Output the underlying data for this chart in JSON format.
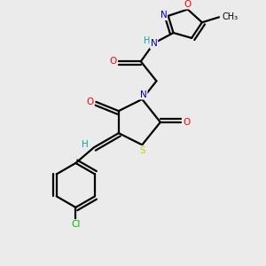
{
  "bg_color": "#ebebeb",
  "atom_colors": {
    "C": "#000000",
    "N": "#0000cc",
    "O": "#ff0000",
    "S": "#cccc00",
    "Cl": "#00bb00",
    "H": "#00aaaa"
  },
  "figsize": [
    3.0,
    3.0
  ],
  "dpi": 100
}
